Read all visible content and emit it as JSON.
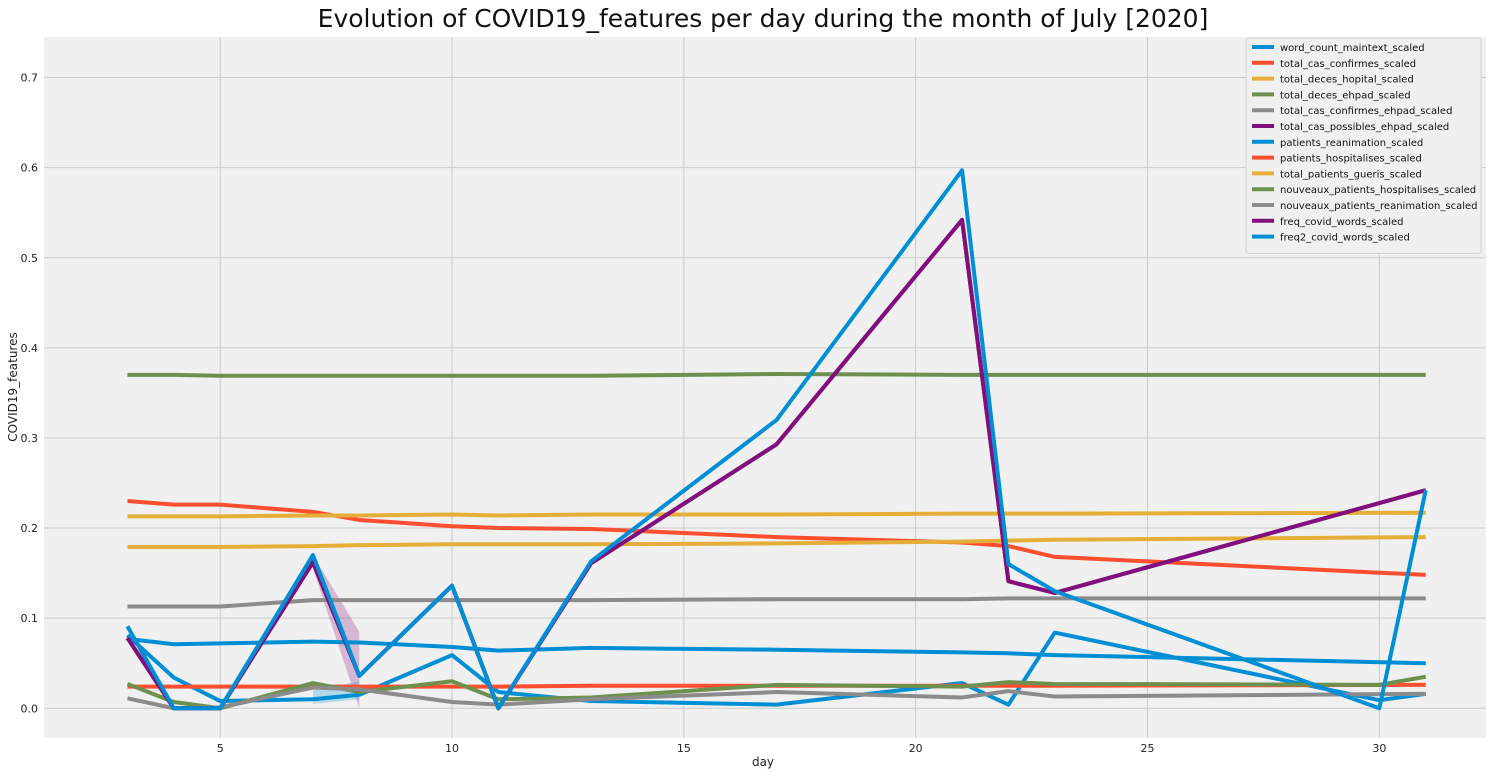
{
  "chart_data": {
    "type": "line",
    "title": "Evolution of COVID19_features per day during the month of July [2020]",
    "xlabel": "day",
    "ylabel": "COVID19_features",
    "xlim": [
      1.2,
      32.3
    ],
    "ylim": [
      -0.033,
      0.745
    ],
    "xticks": [
      5,
      10,
      15,
      20,
      25,
      30
    ],
    "yticks": [
      0.0,
      0.1,
      0.2,
      0.3,
      0.4,
      0.5,
      0.6,
      0.7
    ],
    "grid": true,
    "legend_position": "upper right",
    "background": "#f0f0f0",
    "series": [
      {
        "name": "word_count_maintext_scaled",
        "color": "#008fd5",
        "x": [
          3,
          4,
          5,
          7,
          8,
          10,
          11,
          13,
          17,
          21,
          22,
          23,
          31
        ],
        "y": [
          0.077,
          0.071,
          0.072,
          0.074,
          0.073,
          0.068,
          0.064,
          0.067,
          0.065,
          0.062,
          0.061,
          0.059,
          0.05
        ]
      },
      {
        "name": "total_cas_confirmes_scaled",
        "color": "#fc4f30",
        "x": [
          3,
          4,
          5,
          7,
          8,
          10,
          11,
          13,
          17,
          21,
          22,
          23,
          31
        ],
        "y": [
          0.23,
          0.226,
          0.226,
          0.218,
          0.209,
          0.202,
          0.2,
          0.199,
          0.19,
          0.184,
          0.18,
          0.168,
          0.148
        ]
      },
      {
        "name": "total_deces_hopital_scaled",
        "color": "#e5ae38",
        "x": [
          3,
          4,
          5,
          7,
          8,
          10,
          11,
          13,
          17,
          21,
          22,
          23,
          31
        ],
        "y": [
          0.213,
          0.213,
          0.213,
          0.214,
          0.214,
          0.215,
          0.214,
          0.215,
          0.215,
          0.216,
          0.216,
          0.216,
          0.217
        ]
      },
      {
        "name": "total_deces_ehpad_scaled",
        "color": "#6d904f",
        "x": [
          3,
          4,
          5,
          7,
          8,
          10,
          11,
          13,
          17,
          21,
          22,
          23,
          31
        ],
        "y": [
          0.37,
          0.37,
          0.369,
          0.369,
          0.369,
          0.369,
          0.369,
          0.369,
          0.371,
          0.37,
          0.37,
          0.37,
          0.37
        ]
      },
      {
        "name": "total_cas_confirmes_ehpad_scaled",
        "color": "#8b8b8b",
        "x": [
          3,
          4,
          5,
          7,
          8,
          10,
          11,
          13,
          17,
          21,
          22,
          23,
          31
        ],
        "y": [
          0.113,
          0.113,
          0.113,
          0.12,
          0.12,
          0.12,
          0.12,
          0.12,
          0.121,
          0.121,
          0.122,
          0.122,
          0.122
        ]
      },
      {
        "name": "total_cas_possibles_ehpad_scaled",
        "color": "#810f7c",
        "x": [
          3,
          4,
          5,
          7,
          8,
          10,
          11,
          13,
          17,
          21,
          22,
          23,
          31
        ],
        "y": [
          0.078,
          0.0,
          0.0,
          0.162,
          0.036,
          0.136,
          0.0,
          0.161,
          0.293,
          0.542,
          0.141,
          0.128,
          0.242
        ]
      },
      {
        "name": "patients_reanimation_scaled",
        "color": "#008fd5",
        "x": [
          3,
          4,
          5,
          7,
          8,
          10,
          11,
          13,
          17,
          21,
          22,
          23,
          30,
          31
        ],
        "y": [
          0.081,
          0.034,
          0.008,
          0.01,
          0.015,
          0.059,
          0.018,
          0.008,
          0.004,
          0.028,
          0.004,
          0.084,
          0.009,
          0.016
        ]
      },
      {
        "name": "patients_hospitalises_scaled",
        "color": "#fc4f30",
        "x": [
          3,
          4,
          5,
          7,
          8,
          10,
          11,
          13,
          17,
          21,
          22,
          23,
          31
        ],
        "y": [
          0.024,
          0.024,
          0.024,
          0.024,
          0.024,
          0.024,
          0.024,
          0.025,
          0.025,
          0.025,
          0.025,
          0.025,
          0.026
        ]
      },
      {
        "name": "total_patients_gueris_scaled",
        "color": "#e5ae38",
        "x": [
          3,
          4,
          5,
          7,
          8,
          10,
          11,
          13,
          17,
          21,
          22,
          23,
          31
        ],
        "y": [
          0.179,
          0.179,
          0.179,
          0.18,
          0.181,
          0.182,
          0.182,
          0.182,
          0.183,
          0.185,
          0.186,
          0.187,
          0.19
        ]
      },
      {
        "name": "nouveaux_patients_hospitalises_scaled",
        "color": "#6d904f",
        "x": [
          3,
          4,
          5,
          7,
          8,
          10,
          11,
          13,
          17,
          21,
          22,
          23,
          30,
          31
        ],
        "y": [
          0.027,
          0.007,
          0.0,
          0.028,
          0.018,
          0.03,
          0.01,
          0.012,
          0.026,
          0.024,
          0.029,
          0.027,
          0.026,
          0.035
        ]
      },
      {
        "name": "nouveaux_patients_reanimation_scaled",
        "color": "#8b8b8b",
        "x": [
          3,
          4,
          5,
          7,
          8,
          10,
          11,
          13,
          17,
          21,
          22,
          23,
          31
        ],
        "y": [
          0.011,
          0.0,
          0.001,
          0.023,
          0.021,
          0.007,
          0.004,
          0.01,
          0.018,
          0.012,
          0.019,
          0.013,
          0.016
        ]
      },
      {
        "name": "freq_covid_words_scaled",
        "color": "#810f7c",
        "x": [
          3,
          4,
          5,
          7,
          8,
          10,
          11,
          13,
          17,
          21,
          22,
          23,
          31
        ],
        "y": [
          0.078,
          0.0,
          0.0,
          0.162,
          0.036,
          0.136,
          0.0,
          0.161,
          0.293,
          0.542,
          0.141,
          0.128,
          0.242
        ]
      },
      {
        "name": "freq2_covid_words_scaled",
        "color": "#008fd5",
        "x": [
          3,
          4,
          5,
          7,
          8,
          10,
          11,
          13,
          17,
          21,
          22,
          23,
          30,
          31
        ],
        "y": [
          0.091,
          0.0,
          0.0,
          0.17,
          0.036,
          0.136,
          0.0,
          0.163,
          0.32,
          0.597,
          0.16,
          0.13,
          0.0,
          0.242
        ]
      }
    ],
    "bands": [
      {
        "color": "#810f7c",
        "x": [
          7,
          8
        ],
        "lower": [
          0.155,
          0.0
        ],
        "upper": [
          0.17,
          0.085
        ]
      },
      {
        "color": "#008fd5",
        "x": [
          7,
          8
        ],
        "lower": [
          0.005,
          0.01
        ],
        "upper": [
          0.02,
          0.03
        ]
      }
    ]
  }
}
